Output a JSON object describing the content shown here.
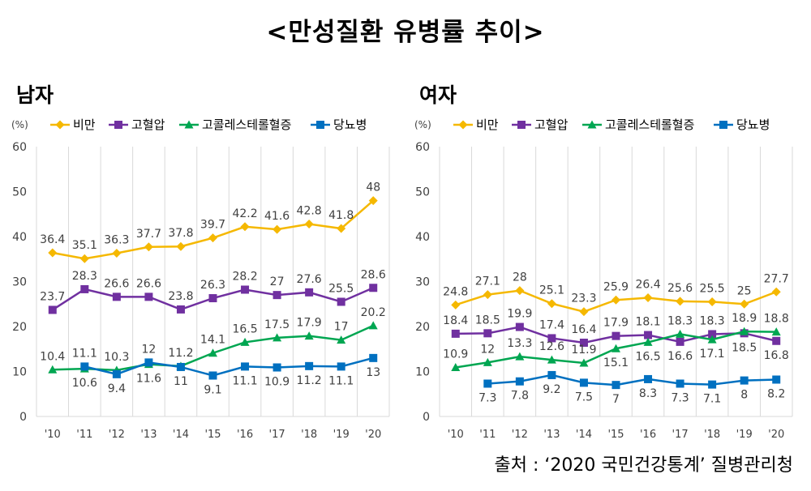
{
  "title": "<만성질환 유병률 추이>",
  "source": "출처 : ‘2020 국민건강통계’ 질병관리청",
  "chart_data": [
    {
      "type": "line",
      "title": "남자",
      "ylabel": "(%)",
      "ylim": [
        0,
        60
      ],
      "yticks": [
        0,
        10,
        20,
        30,
        40,
        50,
        60
      ],
      "categories": [
        "'10",
        "'11",
        "'12",
        "'13",
        "'14",
        "'15",
        "'16",
        "'17",
        "'18",
        "'19",
        "'20"
      ],
      "grid": "vertical",
      "legend_position": "top",
      "series": [
        {
          "name": "비만",
          "color": "#F5B800",
          "marker": "diamond",
          "label_pos": "above",
          "values": [
            36.4,
            35.1,
            36.3,
            37.7,
            37.8,
            39.7,
            42.2,
            41.6,
            42.8,
            41.8,
            48
          ]
        },
        {
          "name": "고혈압",
          "color": "#7030A0",
          "marker": "square",
          "label_pos": "above",
          "values": [
            23.7,
            28.3,
            26.6,
            26.6,
            23.8,
            26.3,
            28.2,
            27,
            27.6,
            25.5,
            28.6
          ]
        },
        {
          "name": "고콜레스테롤혈증",
          "color": "#00A651",
          "marker": "triangle",
          "label_pos": "above",
          "values": [
            10.4,
            10.6,
            10.3,
            11.6,
            11.2,
            14.1,
            16.5,
            17.5,
            17.9,
            17,
            20.2
          ]
        },
        {
          "name": "당뇨병",
          "color": "#0070C0",
          "marker": "square",
          "label_pos": "below",
          "values": [
            null,
            11.1,
            9.4,
            12,
            11,
            9.1,
            11.1,
            10.9,
            11.2,
            11.1,
            13
          ]
        }
      ],
      "label_overrides": [
        {
          "series": 2,
          "index": 1,
          "pos": "below"
        },
        {
          "series": 2,
          "index": 3,
          "pos": "below"
        },
        {
          "series": 3,
          "index": 1,
          "pos": "above"
        },
        {
          "series": 3,
          "index": 3,
          "pos": "above"
        },
        {
          "series": 3,
          "index": 4,
          "pos": "below"
        }
      ]
    },
    {
      "type": "line",
      "title": "여자",
      "ylabel": "(%)",
      "ylim": [
        0,
        60
      ],
      "yticks": [
        0,
        10,
        20,
        30,
        40,
        50,
        60
      ],
      "categories": [
        "'10",
        "'11",
        "'12",
        "'13",
        "'14",
        "'15",
        "'16",
        "'17",
        "'18",
        "'19",
        "'20"
      ],
      "grid": "vertical",
      "legend_position": "top",
      "series": [
        {
          "name": "비만",
          "color": "#F5B800",
          "marker": "diamond",
          "label_pos": "above",
          "values": [
            24.8,
            27.1,
            28,
            25.1,
            23.3,
            25.9,
            26.4,
            25.6,
            25.5,
            25,
            27.7
          ]
        },
        {
          "name": "고혈압",
          "color": "#7030A0",
          "marker": "square",
          "label_pos": "above",
          "values": [
            18.4,
            18.5,
            19.9,
            17.4,
            16.4,
            17.9,
            18.1,
            16.6,
            18.3,
            18.5,
            16.8
          ]
        },
        {
          "name": "고콜레스테롤혈증",
          "color": "#00A651",
          "marker": "triangle",
          "label_pos": "above",
          "values": [
            10.9,
            12,
            13.3,
            12.6,
            11.9,
            15.1,
            16.5,
            18.3,
            17.1,
            18.9,
            18.8
          ]
        },
        {
          "name": "당뇨병",
          "color": "#0070C0",
          "marker": "square",
          "label_pos": "below",
          "values": [
            null,
            7.3,
            7.8,
            9.2,
            7.5,
            7,
            8.3,
            7.3,
            7.1,
            8,
            8.2
          ]
        }
      ],
      "label_overrides": [
        {
          "series": 1,
          "index": 7,
          "pos": "below"
        },
        {
          "series": 1,
          "index": 9,
          "pos": "below"
        },
        {
          "series": 1,
          "index": 10,
          "pos": "below"
        },
        {
          "series": 2,
          "index": 5,
          "pos": "below"
        },
        {
          "series": 2,
          "index": 6,
          "pos": "below"
        },
        {
          "series": 2,
          "index": 8,
          "pos": "below"
        }
      ]
    }
  ]
}
